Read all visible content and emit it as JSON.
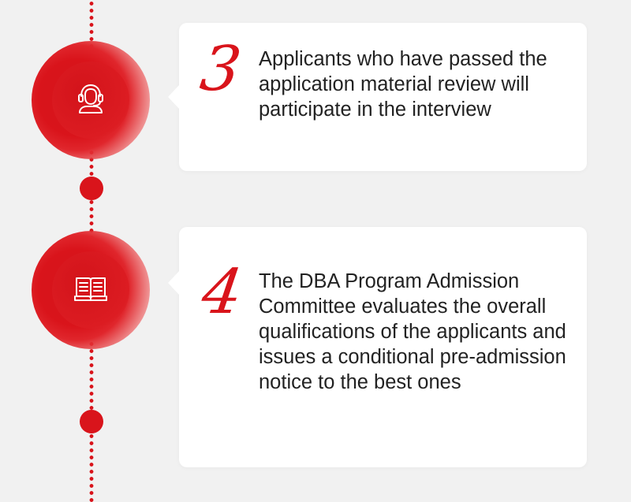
{
  "colors": {
    "accent": "#d9141b",
    "background": "#f1f1f1",
    "card": "#ffffff",
    "text": "#222222"
  },
  "steps": [
    {
      "number": "3",
      "icon": "headset-agent-icon",
      "text": "Applicants who have passed the application material review will participate in the interview"
    },
    {
      "number": "4",
      "icon": "open-book-icon",
      "text": "The DBA Program Admission Committee evaluates the overall qualifications of the applicants and issues a conditional pre-admission notice to the best ones"
    }
  ]
}
